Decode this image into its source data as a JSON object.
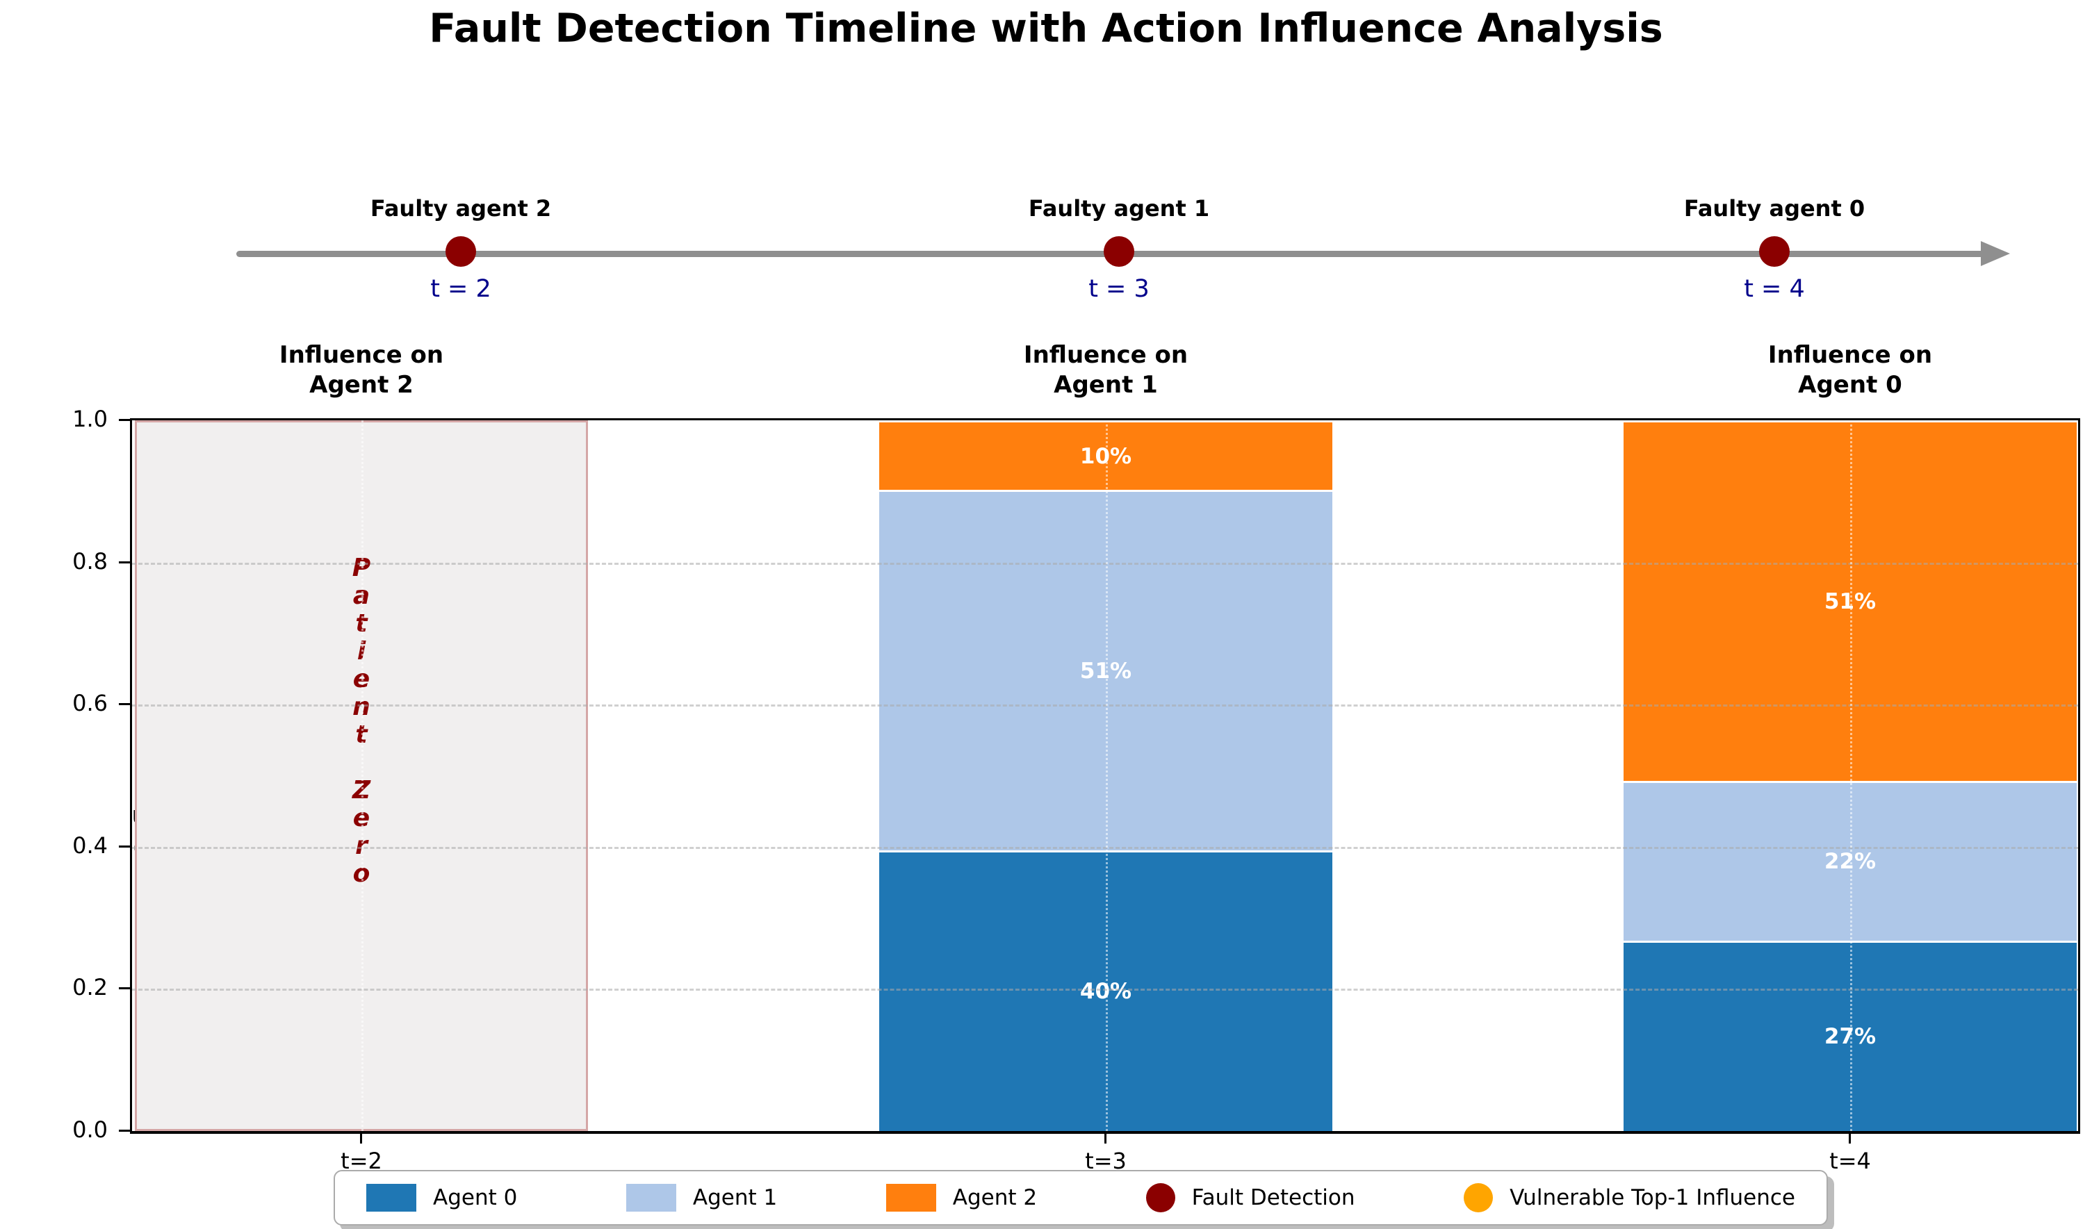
{
  "title": "Fault Detection Timeline with Action Influence Analysis",
  "timeline": {
    "events": [
      {
        "label": "Faulty agent 2",
        "time": "t = 2"
      },
      {
        "label": "Faulty agent 1",
        "time": "t = 3"
      },
      {
        "label": "Faulty agent 0",
        "time": "t = 4"
      }
    ]
  },
  "panel_titles": [
    {
      "line1": "Influence on",
      "line2": "Agent 2"
    },
    {
      "line1": "Influence on",
      "line2": "Agent 1"
    },
    {
      "line1": "Influence on",
      "line2": "Agent 0"
    }
  ],
  "axis": {
    "ylabel": "Influence",
    "yticks": [
      "1.0",
      "0.8",
      "0.6",
      "0.4",
      "0.2",
      "0.0"
    ],
    "xticks": [
      "t=2",
      "t=3",
      "t=4"
    ]
  },
  "patient_zero": {
    "text": "Patient Zero",
    "color": "#8b0000"
  },
  "chart_data": {
    "type": "bar",
    "stacked": true,
    "title": "Fault Detection Timeline with Action Influence Analysis",
    "ylabel": "Influence",
    "ylim": [
      0,
      1
    ],
    "yticks": [
      0.0,
      0.2,
      0.4,
      0.6,
      0.8,
      1.0
    ],
    "grid": true,
    "legend_position": "bottom",
    "categories": [
      "t=2",
      "t=3",
      "t=4"
    ],
    "series_colors": {
      "Agent 0": "#1f77b4",
      "Agent 1": "#aec7e8",
      "Agent 2": "#ff7f0e"
    },
    "series": [
      {
        "name": "Agent 0",
        "values": [
          null,
          0.395,
          0.268
        ]
      },
      {
        "name": "Agent 1",
        "values": [
          null,
          0.507,
          0.225
        ]
      },
      {
        "name": "Agent 2",
        "values": [
          null,
          0.098,
          0.507
        ]
      }
    ],
    "bars": [
      {
        "category": "t=2",
        "annotation": "Patient Zero",
        "segments": []
      },
      {
        "category": "t=3",
        "segments": [
          {
            "series": "Agent 0",
            "value": 0.395,
            "label": "40%"
          },
          {
            "series": "Agent 1",
            "value": 0.507,
            "label": "51%"
          },
          {
            "series": "Agent 2",
            "value": 0.098,
            "label": "10%"
          }
        ]
      },
      {
        "category": "t=4",
        "segments": [
          {
            "series": "Agent 0",
            "value": 0.268,
            "label": "27%"
          },
          {
            "series": "Agent 1",
            "value": 0.225,
            "label": "22%"
          },
          {
            "series": "Agent 2",
            "value": 0.507,
            "label": "51%"
          }
        ]
      }
    ],
    "timeline_annotations": [
      "Faulty agent 2",
      "Faulty agent 1",
      "Faulty agent 0"
    ],
    "timeline_times": [
      "t = 2",
      "t = 3",
      "t = 4"
    ]
  },
  "legend": {
    "items": [
      {
        "label": "Agent 0",
        "marker": "square",
        "color": "#1f77b4"
      },
      {
        "label": "Agent 1",
        "marker": "square",
        "color": "#aec7e8"
      },
      {
        "label": "Agent 2",
        "marker": "square",
        "color": "#ff7f0e"
      },
      {
        "label": "Fault Detection",
        "marker": "circle",
        "color": "#8b0000"
      },
      {
        "label": "Vulnerable Top-1 Influence",
        "marker": "circle",
        "color": "#ffa500"
      }
    ]
  },
  "colors": {
    "timeline_line": "#8f8f8f",
    "fault_marker": "#8b0000",
    "time_label": "#00008b",
    "shaded_fill": "#f1efef",
    "shaded_border": "#d5a6a6"
  }
}
